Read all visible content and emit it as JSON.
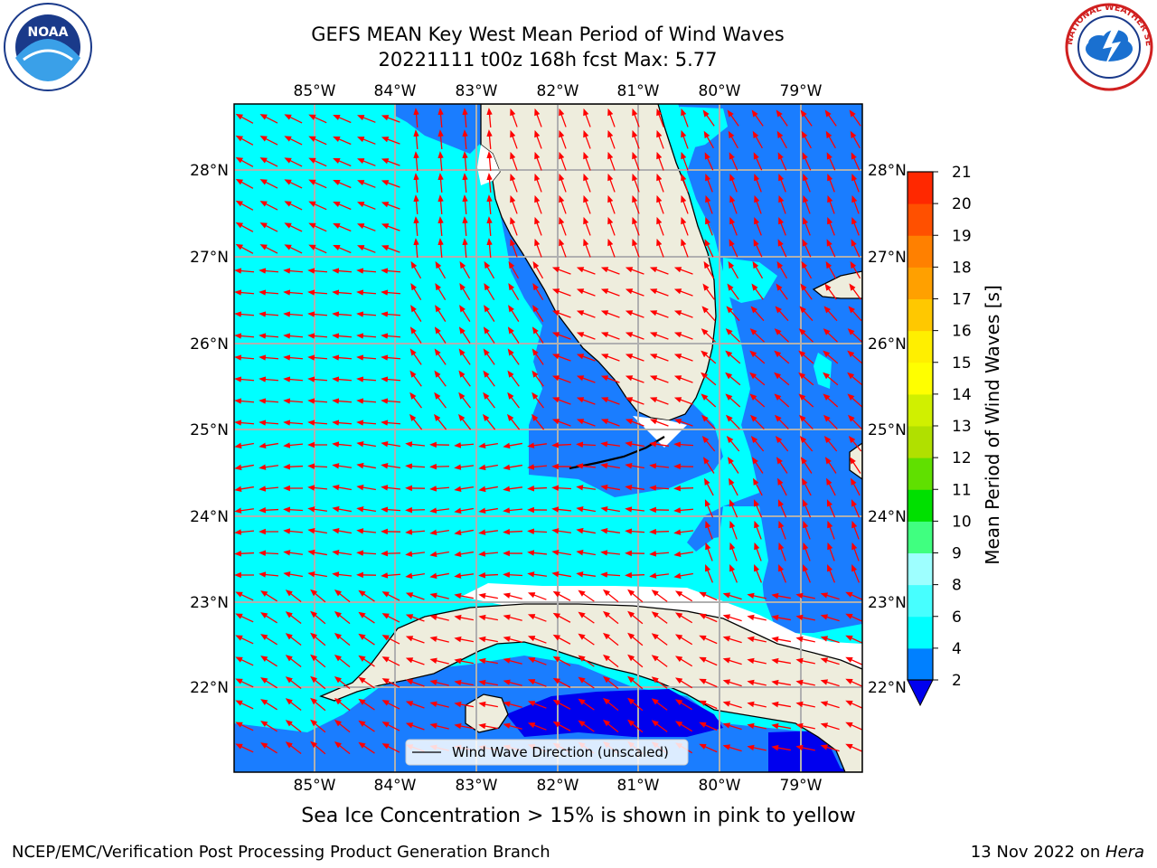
{
  "title": {
    "line1": "GEFS MEAN Key West Mean Period of Wind Waves",
    "line2": "20221111 t00z 168h fcst   Max: 5.77"
  },
  "logos": {
    "left": "NOAA",
    "right_text": "NATIONAL WEATHER SERVICE"
  },
  "map": {
    "lon_labels": [
      "85°W",
      "84°W",
      "83°W",
      "82°W",
      "81°W",
      "80°W",
      "79°W"
    ],
    "lat_labels": [
      "28°N",
      "27°N",
      "26°N",
      "25°N",
      "24°N",
      "23°N",
      "22°N"
    ],
    "legend_text": "Wind Wave Direction (unscaled)",
    "colors": {
      "land": "#eeeddd",
      "water_2_4": "#1a7dff",
      "water_4_6": "#00ffff",
      "water_below_2": "#0000ee",
      "arrow": "#ff0000",
      "grid": "#b0b0b0"
    }
  },
  "colorbar": {
    "label": "Mean Period of Wind Waves [s]",
    "ticks": [
      "2",
      "4",
      "6",
      "8",
      "9",
      "10",
      "11",
      "12",
      "13",
      "14",
      "15",
      "16",
      "17",
      "18",
      "19",
      "20",
      "21"
    ],
    "colors": [
      "#0080ff",
      "#00ffff",
      "#47ffff",
      "#9effff",
      "#40ff80",
      "#00e000",
      "#60e000",
      "#b0e000",
      "#d0f000",
      "#ffff00",
      "#ffef00",
      "#ffc800",
      "#ffa000",
      "#ff8000",
      "#ff5000",
      "#ff2800",
      "#ff0000"
    ],
    "under_color": "#0000ee"
  },
  "subtitle": "Sea Ice Concentration > 15% is shown in pink to yellow",
  "footer": {
    "left": "NCEP/EMC/Verification Post Processing Product Generation Branch",
    "right_prefix": "13 Nov 2022 on ",
    "right_host": "Hera"
  }
}
